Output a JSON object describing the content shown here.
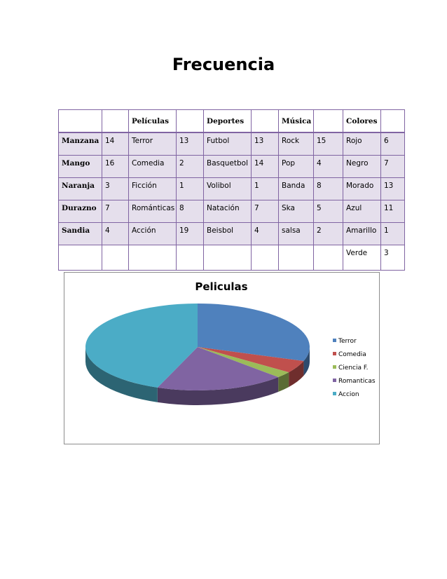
{
  "page_title": "Frecuencia",
  "table": {
    "headers": [
      "",
      "",
      "Películas",
      "",
      "Deportes",
      "",
      "Música",
      "",
      "Colores",
      ""
    ],
    "rows": [
      [
        "Manzana",
        "14",
        "Terror",
        "13",
        "Futbol",
        "13",
        "Rock",
        "15",
        "Rojo",
        "6"
      ],
      [
        "Mango",
        "16",
        "Comedia",
        "2",
        "Basquetbol",
        "14",
        "Pop",
        "4",
        "Negro",
        "7"
      ],
      [
        "Naranja",
        "3",
        "Ficción",
        "1",
        "Volibol",
        "1",
        "Banda",
        "8",
        "Morado",
        "13"
      ],
      [
        "Durazno",
        "7",
        "Románticas",
        "8",
        "Natación",
        "7",
        "Ska",
        "5",
        "Azul",
        "11"
      ],
      [
        "Sandia",
        "4",
        "Acción",
        "19",
        "Beisbol",
        "4",
        "salsa",
        "2",
        "Amarillo",
        "1"
      ]
    ],
    "last_row": [
      "",
      "",
      "",
      "",
      "",
      "",
      "",
      "",
      "Verde",
      "3"
    ]
  },
  "chart_data": {
    "type": "pie",
    "title": "Peliculas",
    "categories": [
      "Terror",
      "Comedia",
      "Ciencia F.",
      "Romanticas",
      "Accion"
    ],
    "values": [
      13,
      2,
      1,
      8,
      19
    ],
    "colors": [
      "#4f81bd",
      "#c0504d",
      "#9bbb59",
      "#8064a2",
      "#4bacc6"
    ],
    "legend_position": "right",
    "three_d": true
  }
}
